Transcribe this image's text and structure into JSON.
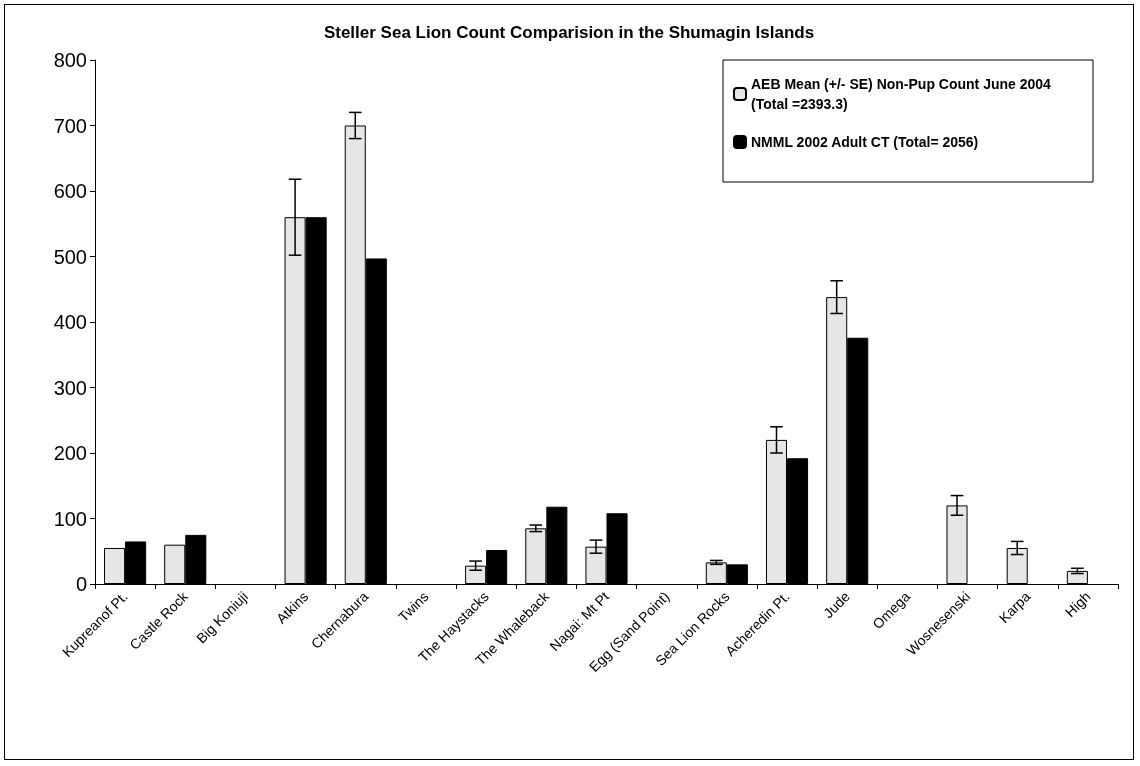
{
  "chart_data": {
    "type": "bar",
    "title": "Steller Sea Lion Count Comparision in the Shumagin Islands",
    "categories": [
      "Kupreanof Pt.",
      "Castle Rock",
      "Big Koniuji",
      "Atkins",
      "Chernabura",
      "Twins",
      "The Haystacks",
      "The Whaleback",
      "Nagai: Mt Pt",
      "Egg (Sand Point)",
      "Sea Lion Rocks",
      "Acheredin Pt.",
      "Jude",
      "Omega",
      "Wosnesenski",
      "Karpa",
      "High"
    ],
    "series": [
      {
        "name": "AEB Mean (+/- SE) Non-Pup Count June 2004 (Total =2393.3)",
        "color": "#e6e6e6",
        "values": [
          55,
          60,
          null,
          560,
          700,
          null,
          28,
          85,
          57,
          null,
          33,
          220,
          438,
          null,
          120,
          55,
          20
        ],
        "errors": [
          null,
          null,
          null,
          58,
          20,
          null,
          7,
          5,
          10,
          null,
          3,
          20,
          25,
          null,
          15,
          10,
          4
        ]
      },
      {
        "name": "NMML 2002 Adult CT (Total= 2056)",
        "color": "#000000",
        "values": [
          65,
          75,
          null,
          560,
          497,
          null,
          52,
          118,
          108,
          null,
          30,
          192,
          376,
          null,
          null,
          null,
          null
        ]
      }
    ],
    "ylim": [
      0,
      800
    ],
    "yticks": [
      0,
      100,
      200,
      300,
      400,
      500,
      600,
      700,
      800
    ],
    "grid": false,
    "legend": "top right"
  }
}
